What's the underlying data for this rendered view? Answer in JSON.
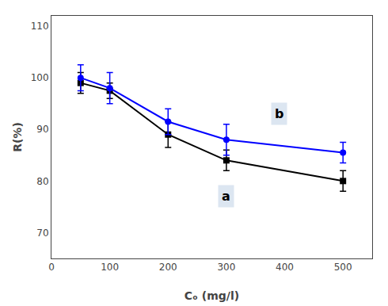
{
  "chart_data": {
    "type": "line",
    "x_label": "Cₒ (mg/l)",
    "y_label": "R(%)",
    "x": [
      50,
      100,
      200,
      300,
      500
    ],
    "series": [
      {
        "color": "#000000",
        "marker": "square",
        "values": [
          99,
          97.5,
          89,
          84,
          80
        ],
        "errors": [
          2.0,
          1.5,
          2.5,
          2.0,
          2.0
        ]
      },
      {
        "color": "#0000ff",
        "marker": "circle",
        "values": [
          100,
          98,
          91.5,
          88,
          85.5
        ],
        "errors": [
          2.5,
          3.0,
          2.5,
          3.0,
          2.0
        ]
      }
    ],
    "annotations": [
      {
        "text": "b",
        "x": 390,
        "y": 93
      },
      {
        "text": "a",
        "x": 300,
        "y": 77
      }
    ],
    "xlim": [
      0,
      550
    ],
    "ylim": [
      65,
      112
    ],
    "xticks": [
      0,
      100,
      200,
      300,
      400,
      500
    ],
    "yticks": [
      70,
      80,
      90,
      100,
      110
    ],
    "grid": false
  }
}
